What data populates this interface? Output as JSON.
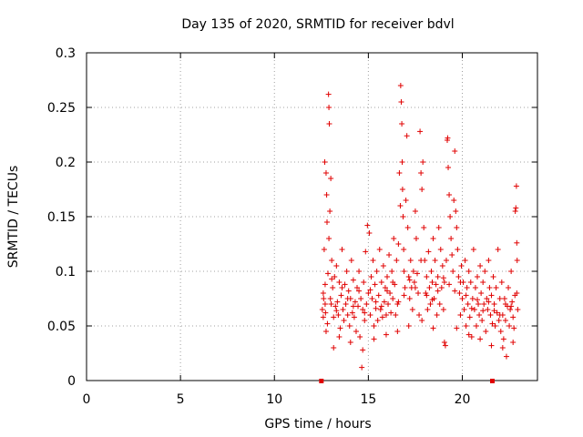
{
  "chart_data": {
    "type": "scatter",
    "title": "Day 135 of 2020, SRMTID for receiver bdvl",
    "xlabel": "GPS time / hours",
    "ylabel": "SRMTID / TECUs",
    "xlim": [
      0,
      24
    ],
    "ylim": [
      0,
      0.3
    ],
    "grid": true,
    "marker": "+",
    "color": "#e00000",
    "x_ticks": [
      {
        "value": 0,
        "label": "0"
      },
      {
        "value": 5,
        "label": "5"
      },
      {
        "value": 10,
        "label": "10"
      },
      {
        "value": 15,
        "label": "15"
      },
      {
        "value": 20,
        "label": "20"
      }
    ],
    "y_ticks": [
      {
        "value": 0,
        "label": "0"
      },
      {
        "value": 0.05,
        "label": "0.05"
      },
      {
        "value": 0.1,
        "label": "0.1"
      },
      {
        "value": 0.15,
        "label": "0.15"
      },
      {
        "value": 0.2,
        "label": "0.2"
      },
      {
        "value": 0.25,
        "label": "0.25"
      },
      {
        "value": 0.3,
        "label": "0.3"
      }
    ],
    "gap_markers_x": [
      12.5,
      21.6
    ],
    "points": [
      [
        12.55,
        0.065
      ],
      [
        12.6,
        0.058
      ],
      [
        12.62,
        0.075
      ],
      [
        12.65,
        0.12
      ],
      [
        12.68,
        0.2
      ],
      [
        12.7,
        0.088
      ],
      [
        12.72,
        0.062
      ],
      [
        12.75,
        0.19
      ],
      [
        12.78,
        0.17
      ],
      [
        12.8,
        0.145
      ],
      [
        12.82,
        0.052
      ],
      [
        12.85,
        0.098
      ],
      [
        12.88,
        0.262
      ],
      [
        12.9,
        0.25
      ],
      [
        12.92,
        0.235
      ],
      [
        12.95,
        0.155
      ],
      [
        12.98,
        0.075
      ],
      [
        13.0,
        0.185
      ],
      [
        13.02,
        0.07
      ],
      [
        13.05,
        0.11
      ],
      [
        13.1,
        0.085
      ],
      [
        13.15,
        0.058
      ],
      [
        13.2,
        0.095
      ],
      [
        13.25,
        0.068
      ],
      [
        13.3,
        0.105
      ],
      [
        13.35,
        0.072
      ],
      [
        13.4,
        0.06
      ],
      [
        13.45,
        0.09
      ],
      [
        13.5,
        0.048
      ],
      [
        13.55,
        0.078
      ],
      [
        13.6,
        0.12
      ],
      [
        13.65,
        0.065
      ],
      [
        13.7,
        0.055
      ],
      [
        13.75,
        0.088
      ],
      [
        13.8,
        0.07
      ],
      [
        13.85,
        0.1
      ],
      [
        13.9,
        0.06
      ],
      [
        13.95,
        0.082
      ],
      [
        14.0,
        0.05
      ],
      [
        14.05,
        0.075
      ],
      [
        14.1,
        0.11
      ],
      [
        14.15,
        0.062
      ],
      [
        14.2,
        0.092
      ],
      [
        14.25,
        0.058
      ],
      [
        14.3,
        0.072
      ],
      [
        14.35,
        0.045
      ],
      [
        14.4,
        0.085
      ],
      [
        14.45,
        0.068
      ],
      [
        14.5,
        0.1
      ],
      [
        14.55,
        0.04
      ],
      [
        14.6,
        0.075
      ],
      [
        14.65,
        0.012
      ],
      [
        14.7,
        0.065
      ],
      [
        14.75,
        0.09
      ],
      [
        14.8,
        0.055
      ],
      [
        14.85,
        0.118
      ],
      [
        14.9,
        0.07
      ],
      [
        14.95,
        0.142
      ],
      [
        15.0,
        0.08
      ],
      [
        15.05,
        0.135
      ],
      [
        15.1,
        0.06
      ],
      [
        15.15,
        0.095
      ],
      [
        15.2,
        0.075
      ],
      [
        15.25,
        0.11
      ],
      [
        15.3,
        0.05
      ],
      [
        15.35,
        0.088
      ],
      [
        15.4,
        0.066
      ],
      [
        15.45,
        0.1
      ],
      [
        15.5,
        0.055
      ],
      [
        15.55,
        0.078
      ],
      [
        15.6,
        0.12
      ],
      [
        15.65,
        0.065
      ],
      [
        15.7,
        0.09
      ],
      [
        15.75,
        0.058
      ],
      [
        15.8,
        0.105
      ],
      [
        15.85,
        0.072
      ],
      [
        15.9,
        0.085
      ],
      [
        15.95,
        0.06
      ],
      [
        16.0,
        0.095
      ],
      [
        16.05,
        0.07
      ],
      [
        16.1,
        0.115
      ],
      [
        16.15,
        0.08
      ],
      [
        16.2,
        0.062
      ],
      [
        16.25,
        0.1
      ],
      [
        16.3,
        0.075
      ],
      [
        16.35,
        0.13
      ],
      [
        16.4,
        0.088
      ],
      [
        16.45,
        0.06
      ],
      [
        16.5,
        0.11
      ],
      [
        16.55,
        0.07
      ],
      [
        16.6,
        0.125
      ],
      [
        16.65,
        0.19
      ],
      [
        16.7,
        0.16
      ],
      [
        16.72,
        0.27
      ],
      [
        16.75,
        0.255
      ],
      [
        16.78,
        0.235
      ],
      [
        16.8,
        0.2
      ],
      [
        16.82,
        0.175
      ],
      [
        16.85,
        0.15
      ],
      [
        16.88,
        0.12
      ],
      [
        16.9,
        0.1
      ],
      [
        16.95,
        0.085
      ],
      [
        17.0,
        0.165
      ],
      [
        17.05,
        0.224
      ],
      [
        17.1,
        0.14
      ],
      [
        17.15,
        0.095
      ],
      [
        17.2,
        0.075
      ],
      [
        17.25,
        0.11
      ],
      [
        17.3,
        0.085
      ],
      [
        17.35,
        0.065
      ],
      [
        17.4,
        0.1
      ],
      [
        17.45,
        0.09
      ],
      [
        17.5,
        0.155
      ],
      [
        17.55,
        0.13
      ],
      [
        17.6,
        0.098
      ],
      [
        17.65,
        0.08
      ],
      [
        17.7,
        0.06
      ],
      [
        17.75,
        0.228
      ],
      [
        17.8,
        0.19
      ],
      [
        17.85,
        0.175
      ],
      [
        17.9,
        0.2
      ],
      [
        17.95,
        0.14
      ],
      [
        18.0,
        0.11
      ],
      [
        18.05,
        0.08
      ],
      [
        18.1,
        0.095
      ],
      [
        18.15,
        0.065
      ],
      [
        18.2,
        0.118
      ],
      [
        18.25,
        0.085
      ],
      [
        18.3,
        0.07
      ],
      [
        18.35,
        0.1
      ],
      [
        18.4,
        0.09
      ],
      [
        18.45,
        0.13
      ],
      [
        18.5,
        0.075
      ],
      [
        18.55,
        0.11
      ],
      [
        18.6,
        0.088
      ],
      [
        18.65,
        0.06
      ],
      [
        18.7,
        0.095
      ],
      [
        18.75,
        0.14
      ],
      [
        18.8,
        0.07
      ],
      [
        18.85,
        0.12
      ],
      [
        18.9,
        0.085
      ],
      [
        18.95,
        0.105
      ],
      [
        19.0,
        0.065
      ],
      [
        19.05,
        0.09
      ],
      [
        19.1,
        0.032
      ],
      [
        19.15,
        0.11
      ],
      [
        19.2,
        0.22
      ],
      [
        19.22,
        0.222
      ],
      [
        19.25,
        0.195
      ],
      [
        19.3,
        0.17
      ],
      [
        19.35,
        0.15
      ],
      [
        19.4,
        0.13
      ],
      [
        19.45,
        0.115
      ],
      [
        19.5,
        0.1
      ],
      [
        19.55,
        0.165
      ],
      [
        19.6,
        0.21
      ],
      [
        19.65,
        0.155
      ],
      [
        19.7,
        0.14
      ],
      [
        19.75,
        0.12
      ],
      [
        19.8,
        0.095
      ],
      [
        19.85,
        0.08
      ],
      [
        19.9,
        0.06
      ],
      [
        19.95,
        0.105
      ],
      [
        20.0,
        0.075
      ],
      [
        20.05,
        0.09
      ],
      [
        20.1,
        0.065
      ],
      [
        20.15,
        0.11
      ],
      [
        20.2,
        0.05
      ],
      [
        20.25,
        0.085
      ],
      [
        20.3,
        0.07
      ],
      [
        20.35,
        0.1
      ],
      [
        20.4,
        0.058
      ],
      [
        20.45,
        0.09
      ],
      [
        20.5,
        0.04
      ],
      [
        20.55,
        0.075
      ],
      [
        20.6,
        0.12
      ],
      [
        20.65,
        0.065
      ],
      [
        20.7,
        0.085
      ],
      [
        20.75,
        0.05
      ],
      [
        20.8,
        0.095
      ],
      [
        20.85,
        0.07
      ],
      [
        20.9,
        0.06
      ],
      [
        20.95,
        0.105
      ],
      [
        21.0,
        0.08
      ],
      [
        21.05,
        0.055
      ],
      [
        21.1,
        0.09
      ],
      [
        21.15,
        0.07
      ],
      [
        21.2,
        0.1
      ],
      [
        21.25,
        0.045
      ],
      [
        21.3,
        0.075
      ],
      [
        21.35,
        0.065
      ],
      [
        21.4,
        0.11
      ],
      [
        21.45,
        0.085
      ],
      [
        21.5,
        0.06
      ],
      [
        21.55,
        0.078
      ],
      [
        21.6,
        0.052
      ],
      [
        21.65,
        0.095
      ],
      [
        21.7,
        0.07
      ],
      [
        21.75,
        0.05
      ],
      [
        21.8,
        0.085
      ],
      [
        21.85,
        0.062
      ],
      [
        21.9,
        0.12
      ],
      [
        21.95,
        0.055
      ],
      [
        22.0,
        0.075
      ],
      [
        22.05,
        0.045
      ],
      [
        22.1,
        0.09
      ],
      [
        22.15,
        0.06
      ],
      [
        22.2,
        0.038
      ],
      [
        22.25,
        0.075
      ],
      [
        22.3,
        0.055
      ],
      [
        22.35,
        0.022
      ],
      [
        22.4,
        0.068
      ],
      [
        22.45,
        0.085
      ],
      [
        22.5,
        0.05
      ],
      [
        22.55,
        0.065
      ],
      [
        22.6,
        0.1
      ],
      [
        22.65,
        0.072
      ],
      [
        22.7,
        0.058
      ],
      [
        22.75,
        0.048
      ],
      [
        22.8,
        0.078
      ],
      [
        22.82,
        0.155
      ],
      [
        22.85,
        0.158
      ],
      [
        22.88,
        0.178
      ],
      [
        22.9,
        0.126
      ],
      [
        22.92,
        0.11
      ],
      [
        22.95,
        0.065
      ],
      [
        12.6,
        0.08
      ],
      [
        12.7,
        0.07
      ],
      [
        12.9,
        0.13
      ],
      [
        13.05,
        0.093
      ],
      [
        13.3,
        0.064
      ],
      [
        13.6,
        0.085
      ],
      [
        13.9,
        0.075
      ],
      [
        14.2,
        0.068
      ],
      [
        14.5,
        0.082
      ],
      [
        14.8,
        0.062
      ],
      [
        15.1,
        0.083
      ],
      [
        15.4,
        0.072
      ],
      [
        15.7,
        0.068
      ],
      [
        16.0,
        0.082
      ],
      [
        16.3,
        0.09
      ],
      [
        16.6,
        0.072
      ],
      [
        16.9,
        0.078
      ],
      [
        17.2,
        0.092
      ],
      [
        17.5,
        0.085
      ],
      [
        17.8,
        0.11
      ],
      [
        18.1,
        0.078
      ],
      [
        18.4,
        0.074
      ],
      [
        18.7,
        0.082
      ],
      [
        19.0,
        0.094
      ],
      [
        19.3,
        0.088
      ],
      [
        19.6,
        0.082
      ],
      [
        19.9,
        0.09
      ],
      [
        20.2,
        0.078
      ],
      [
        20.5,
        0.066
      ],
      [
        20.8,
        0.074
      ],
      [
        21.1,
        0.064
      ],
      [
        21.4,
        0.072
      ],
      [
        21.7,
        0.064
      ],
      [
        22.0,
        0.06
      ],
      [
        22.3,
        0.07
      ],
      [
        22.6,
        0.068
      ],
      [
        22.9,
        0.08
      ],
      [
        12.75,
        0.045
      ],
      [
        13.15,
        0.03
      ],
      [
        13.45,
        0.04
      ],
      [
        14.05,
        0.035
      ],
      [
        14.7,
        0.028
      ],
      [
        15.3,
        0.038
      ],
      [
        15.95,
        0.042
      ],
      [
        16.55,
        0.045
      ],
      [
        17.15,
        0.05
      ],
      [
        17.85,
        0.055
      ],
      [
        18.45,
        0.048
      ],
      [
        19.05,
        0.035
      ],
      [
        19.7,
        0.048
      ],
      [
        20.35,
        0.042
      ],
      [
        20.95,
        0.038
      ],
      [
        21.55,
        0.032
      ],
      [
        22.15,
        0.03
      ],
      [
        22.7,
        0.035
      ]
    ]
  }
}
